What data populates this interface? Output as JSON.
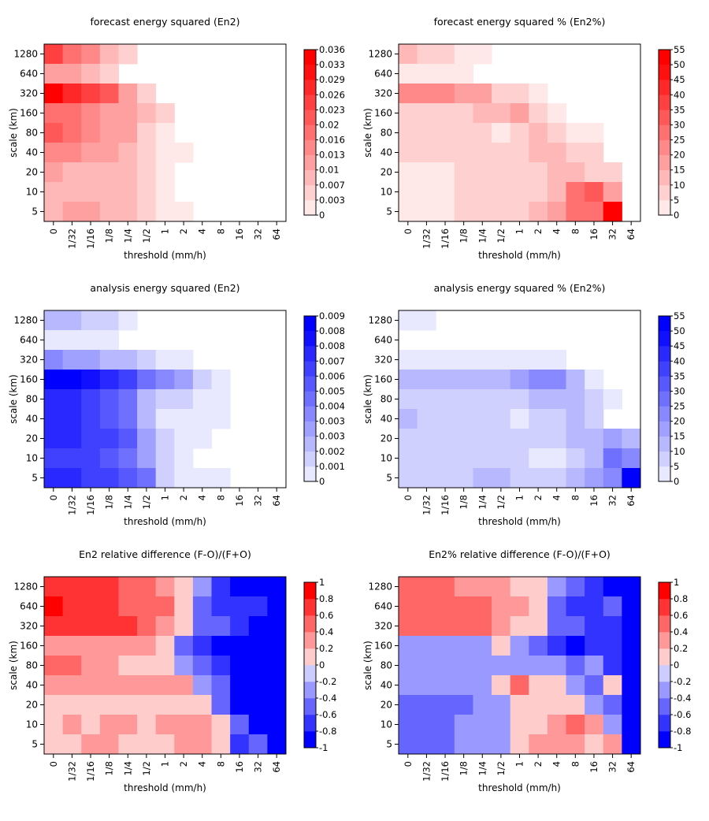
{
  "chart_data": [
    {
      "type": "heatmap",
      "title": "forecast energy squared (En2)",
      "xlabel": "threshold (mm/h)",
      "ylabel": "scale (km)",
      "x_categories": [
        "0",
        "1/32",
        "1/16",
        "1/8",
        "1/4",
        "1/2",
        "1",
        "2",
        "4",
        "8",
        "16",
        "32",
        "64"
      ],
      "y_categories": [
        "1280",
        "640",
        "320",
        "160",
        "80",
        "40",
        "20",
        "10",
        "5"
      ],
      "colorbar": {
        "palette": "red",
        "labels": [
          "0.036",
          "0.033",
          "0.029",
          "0.026",
          "0.023",
          "0.02",
          "0.016",
          "0.013",
          "0.01",
          "0.007",
          "0.003",
          "0"
        ]
      },
      "levels": [
        [
          8,
          6,
          5,
          3,
          2,
          null,
          null,
          null,
          null,
          null,
          null,
          null,
          null
        ],
        [
          4,
          4,
          3,
          2,
          null,
          null,
          null,
          null,
          null,
          null,
          null,
          null,
          null
        ],
        [
          11,
          9,
          8,
          7,
          4,
          2,
          null,
          null,
          null,
          null,
          null,
          null,
          null
        ],
        [
          6,
          6,
          5,
          4,
          4,
          3,
          2,
          null,
          null,
          null,
          null,
          null,
          null
        ],
        [
          7,
          6,
          5,
          4,
          4,
          2,
          1,
          null,
          null,
          null,
          null,
          null,
          null
        ],
        [
          5,
          5,
          4,
          4,
          3,
          2,
          1,
          1,
          null,
          null,
          null,
          null,
          null
        ],
        [
          4,
          3,
          3,
          3,
          3,
          2,
          1,
          null,
          null,
          null,
          null,
          null,
          null
        ],
        [
          3,
          3,
          3,
          3,
          3,
          2,
          1,
          null,
          null,
          null,
          null,
          null,
          null
        ],
        [
          3,
          4,
          4,
          3,
          3,
          2,
          1,
          1,
          null,
          null,
          null,
          null,
          null
        ]
      ]
    },
    {
      "type": "heatmap",
      "title": "forecast energy squared % (En2%)",
      "xlabel": "threshold (mm/h)",
      "ylabel": "scale (km)",
      "x_categories": [
        "0",
        "1/32",
        "1/16",
        "1/8",
        "1/4",
        "1/2",
        "1",
        "2",
        "4",
        "8",
        "16",
        "32",
        "64"
      ],
      "y_categories": [
        "1280",
        "640",
        "320",
        "160",
        "80",
        "40",
        "20",
        "10",
        "5"
      ],
      "colorbar": {
        "palette": "red",
        "labels": [
          "55",
          "50",
          "45",
          "40",
          "35",
          "30",
          "25",
          "20",
          "15",
          "10",
          "5",
          "0"
        ]
      },
      "levels": [
        [
          3,
          2,
          2,
          1,
          1,
          null,
          null,
          null,
          null,
          null,
          null,
          null,
          null
        ],
        [
          1,
          1,
          1,
          1,
          null,
          null,
          null,
          null,
          null,
          null,
          null,
          null,
          null
        ],
        [
          5,
          5,
          5,
          4,
          4,
          2,
          2,
          1,
          null,
          null,
          null,
          null,
          null
        ],
        [
          2,
          2,
          2,
          2,
          3,
          3,
          4,
          2,
          1,
          null,
          null,
          null,
          null
        ],
        [
          2,
          2,
          2,
          2,
          2,
          1,
          2,
          3,
          2,
          1,
          1,
          null,
          null
        ],
        [
          2,
          2,
          2,
          2,
          2,
          2,
          2,
          3,
          3,
          2,
          2,
          null,
          null
        ],
        [
          1,
          1,
          1,
          2,
          2,
          2,
          2,
          2,
          3,
          3,
          2,
          2,
          null
        ],
        [
          1,
          1,
          1,
          2,
          2,
          2,
          2,
          2,
          3,
          6,
          7,
          4,
          null
        ],
        [
          1,
          1,
          1,
          2,
          2,
          2,
          2,
          3,
          4,
          6,
          6,
          11,
          null
        ]
      ]
    },
    {
      "type": "heatmap",
      "title": "analysis energy squared (En2)",
      "xlabel": "threshold (mm/h)",
      "ylabel": "scale (km)",
      "x_categories": [
        "0",
        "1/32",
        "1/16",
        "1/8",
        "1/4",
        "1/2",
        "1",
        "2",
        "4",
        "8",
        "16",
        "32",
        "64"
      ],
      "y_categories": [
        "1280",
        "640",
        "320",
        "160",
        "80",
        "40",
        "20",
        "10",
        "5"
      ],
      "colorbar": {
        "palette": "blue",
        "labels": [
          "0.009",
          "0.008",
          "0.008",
          "0.007",
          "0.006",
          "0.005",
          "0.004",
          "0.003",
          "0.003",
          "0.002",
          "0.001",
          "0"
        ]
      },
      "levels": [
        [
          3,
          3,
          2,
          2,
          1,
          null,
          null,
          null,
          null,
          null,
          null,
          null,
          null
        ],
        [
          1,
          1,
          1,
          1,
          null,
          null,
          null,
          null,
          null,
          null,
          null,
          null,
          null
        ],
        [
          5,
          4,
          4,
          3,
          3,
          2,
          1,
          1,
          null,
          null,
          null,
          null,
          null
        ],
        [
          11,
          11,
          10,
          9,
          8,
          6,
          5,
          4,
          2,
          1,
          null,
          null,
          null
        ],
        [
          9,
          9,
          8,
          7,
          6,
          3,
          2,
          2,
          1,
          1,
          null,
          null,
          null
        ],
        [
          9,
          9,
          8,
          7,
          6,
          3,
          1,
          1,
          1,
          1,
          null,
          null,
          null
        ],
        [
          9,
          9,
          8,
          8,
          7,
          4,
          2,
          1,
          1,
          null,
          null,
          null,
          null
        ],
        [
          8,
          8,
          8,
          7,
          6,
          4,
          2,
          1,
          null,
          null,
          null,
          null,
          null
        ],
        [
          9,
          9,
          8,
          8,
          7,
          6,
          2,
          1,
          1,
          1,
          null,
          null,
          null
        ]
      ]
    },
    {
      "type": "heatmap",
      "title": "analysis energy squared % (En2%)",
      "xlabel": "threshold (mm/h)",
      "ylabel": "scale (km)",
      "x_categories": [
        "0",
        "1/32",
        "1/16",
        "1/8",
        "1/4",
        "1/2",
        "1",
        "2",
        "4",
        "8",
        "16",
        "32",
        "64"
      ],
      "y_categories": [
        "1280",
        "640",
        "320",
        "160",
        "80",
        "40",
        "20",
        "10",
        "5"
      ],
      "colorbar": {
        "palette": "blue",
        "labels": [
          "55",
          "50",
          "45",
          "40",
          "35",
          "30",
          "25",
          "20",
          "15",
          "10",
          "5",
          "0"
        ]
      },
      "levels": [
        [
          1,
          1,
          null,
          null,
          null,
          null,
          null,
          null,
          null,
          null,
          null,
          null,
          null
        ],
        [
          null,
          null,
          null,
          null,
          null,
          null,
          null,
          null,
          null,
          null,
          null,
          null,
          null
        ],
        [
          1,
          1,
          1,
          1,
          1,
          1,
          1,
          1,
          1,
          null,
          null,
          null,
          null
        ],
        [
          3,
          3,
          3,
          3,
          3,
          3,
          4,
          5,
          5,
          3,
          1,
          null,
          null
        ],
        [
          2,
          2,
          2,
          2,
          2,
          2,
          2,
          3,
          3,
          3,
          2,
          1,
          null
        ],
        [
          3,
          2,
          2,
          2,
          2,
          2,
          1,
          2,
          2,
          3,
          2,
          null,
          null
        ],
        [
          2,
          2,
          2,
          2,
          2,
          2,
          2,
          2,
          2,
          3,
          3,
          4,
          3
        ],
        [
          2,
          2,
          2,
          2,
          2,
          2,
          2,
          1,
          1,
          2,
          3,
          6,
          5
        ],
        [
          2,
          2,
          2,
          2,
          3,
          3,
          2,
          2,
          2,
          3,
          4,
          5,
          11
        ]
      ]
    },
    {
      "type": "heatmap",
      "title": "En2 relative difference (F-O)/(F+O)",
      "xlabel": "threshold (mm/h)",
      "ylabel": "scale (km)",
      "x_categories": [
        "0",
        "1/32",
        "1/16",
        "1/8",
        "1/4",
        "1/2",
        "1",
        "2",
        "4",
        "8",
        "16",
        "32",
        "64"
      ],
      "y_categories": [
        "1280",
        "640",
        "320",
        "160",
        "80",
        "40",
        "20",
        "10",
        "5"
      ],
      "colorbar": {
        "palette": "diverging",
        "labels": [
          "1",
          "0.8",
          "0.6",
          "0.4",
          "0.2",
          "0",
          "-0.2",
          "-0.4",
          "-0.6",
          "-0.8",
          "-1"
        ]
      },
      "levels": [
        [
          0.7,
          0.7,
          0.7,
          0.7,
          0.5,
          0.5,
          0.3,
          0.1,
          -0.3,
          -0.7,
          -0.9,
          -0.9,
          -0.9
        ],
        [
          0.9,
          0.7,
          0.7,
          0.7,
          0.5,
          0.5,
          0.5,
          0.1,
          -0.5,
          -0.7,
          -0.7,
          -0.7,
          -0.9
        ],
        [
          0.7,
          0.7,
          0.7,
          0.7,
          0.7,
          0.5,
          0.3,
          0.1,
          -0.5,
          -0.5,
          -0.7,
          -0.9,
          -0.9
        ],
        [
          0.3,
          0.3,
          0.3,
          0.3,
          0.3,
          0.3,
          0.1,
          -0.5,
          -0.7,
          -0.9,
          -0.9,
          -0.9,
          -0.9
        ],
        [
          0.5,
          0.5,
          0.3,
          0.3,
          0.1,
          0.1,
          0.1,
          -0.3,
          -0.5,
          -0.7,
          -0.9,
          -0.9,
          -0.9
        ],
        [
          0.3,
          0.3,
          0.3,
          0.3,
          0.3,
          0.3,
          0.3,
          0.3,
          -0.3,
          -0.5,
          -0.9,
          -0.9,
          -0.9
        ],
        [
          0.1,
          0.1,
          0.1,
          0.1,
          0.1,
          0.1,
          0.1,
          0.1,
          0.1,
          -0.5,
          -0.9,
          -0.9,
          -0.9
        ],
        [
          0.1,
          0.3,
          0.1,
          0.3,
          0.3,
          0.1,
          0.3,
          0.3,
          0.3,
          0.1,
          -0.5,
          -0.9,
          -0.9
        ],
        [
          0.1,
          0.1,
          0.3,
          0.3,
          0.1,
          0.1,
          0.1,
          0.3,
          0.3,
          0.1,
          -0.7,
          -0.5,
          -0.9
        ]
      ]
    },
    {
      "type": "heatmap",
      "title": "En2% relative difference (F-O)/(F+O)",
      "xlabel": "threshold (mm/h)",
      "ylabel": "scale (km)",
      "x_categories": [
        "0",
        "1/32",
        "1/16",
        "1/8",
        "1/4",
        "1/2",
        "1",
        "2",
        "4",
        "8",
        "16",
        "32",
        "64"
      ],
      "y_categories": [
        "1280",
        "640",
        "320",
        "160",
        "80",
        "40",
        "20",
        "10",
        "5"
      ],
      "colorbar": {
        "palette": "diverging",
        "labels": [
          "1",
          "0.8",
          "0.6",
          "0.4",
          "0.2",
          "0",
          "-0.2",
          "-0.4",
          "-0.6",
          "-0.8",
          "-1"
        ]
      },
      "levels": [
        [
          0.5,
          0.5,
          0.5,
          0.3,
          0.3,
          0.3,
          0.1,
          0.1,
          -0.3,
          -0.5,
          -0.7,
          -0.9,
          -0.9
        ],
        [
          0.5,
          0.5,
          0.5,
          0.5,
          0.5,
          0.3,
          0.3,
          0.1,
          -0.5,
          -0.7,
          -0.7,
          -0.5,
          -0.9
        ],
        [
          0.5,
          0.5,
          0.5,
          0.5,
          0.5,
          0.3,
          0.1,
          0.1,
          -0.5,
          -0.5,
          -0.7,
          -0.7,
          -0.9
        ],
        [
          -0.3,
          -0.3,
          -0.3,
          -0.3,
          -0.3,
          0.1,
          -0.3,
          -0.5,
          -0.7,
          -0.9,
          -0.7,
          -0.7,
          -0.9
        ],
        [
          -0.3,
          -0.3,
          -0.3,
          -0.3,
          -0.3,
          -0.3,
          -0.3,
          -0.3,
          -0.3,
          -0.5,
          -0.3,
          -0.7,
          -0.9
        ],
        [
          -0.3,
          -0.3,
          -0.3,
          -0.3,
          -0.3,
          0.1,
          0.5,
          0.1,
          0.1,
          -0.3,
          -0.5,
          0.1,
          -0.9
        ],
        [
          -0.5,
          -0.5,
          -0.5,
          -0.5,
          -0.3,
          -0.3,
          0.1,
          0.1,
          0.1,
          0.1,
          -0.3,
          -0.5,
          -0.9
        ],
        [
          -0.5,
          -0.5,
          -0.5,
          -0.3,
          -0.3,
          -0.3,
          0.1,
          0.1,
          0.3,
          0.5,
          0.3,
          -0.3,
          -0.9
        ],
        [
          -0.5,
          -0.5,
          -0.5,
          -0.3,
          -0.3,
          -0.3,
          0.1,
          0.3,
          0.3,
          0.3,
          0.1,
          0.3,
          -0.9
        ]
      ]
    }
  ]
}
